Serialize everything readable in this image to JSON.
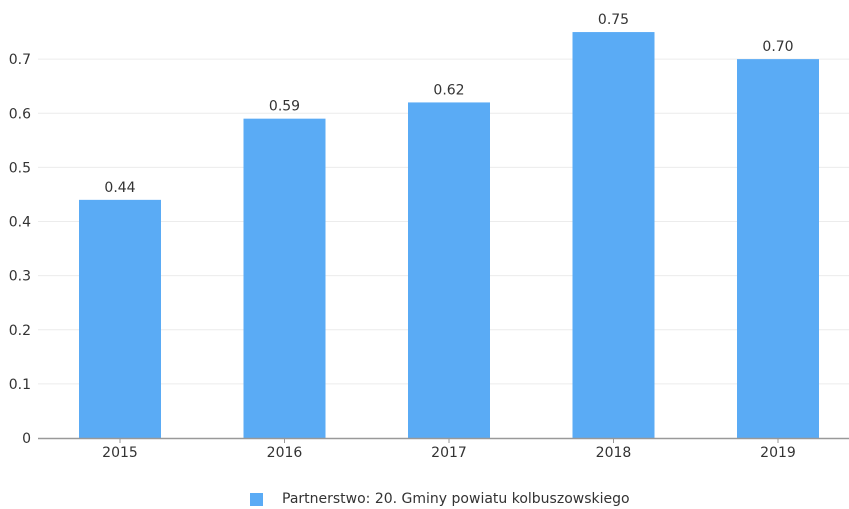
{
  "chart_data": {
    "type": "bar",
    "categories": [
      "2015",
      "2016",
      "2017",
      "2018",
      "2019"
    ],
    "series": [
      {
        "name": "Partnerstwo: 20. Gminy powiatu kolbuszowskiego",
        "values": [
          0.44,
          0.59,
          0.62,
          0.75,
          0.7
        ],
        "labels": [
          "0.44",
          "0.59",
          "0.62",
          "0.75",
          "0.70"
        ]
      }
    ],
    "ylim": [
      0,
      0.8
    ],
    "yticks": [
      0,
      0.1,
      0.2,
      0.3,
      0.4,
      0.5,
      0.6,
      0.7
    ],
    "ytick_labels": [
      "0",
      "0.1",
      "0.2",
      "0.3",
      "0.4",
      "0.5",
      "0.6",
      "0.7"
    ],
    "grid": true,
    "legend_position": "bottom-center",
    "colors": {
      "bar": "#5aabf5",
      "grid": "#ececec",
      "axis": "#999999"
    }
  }
}
